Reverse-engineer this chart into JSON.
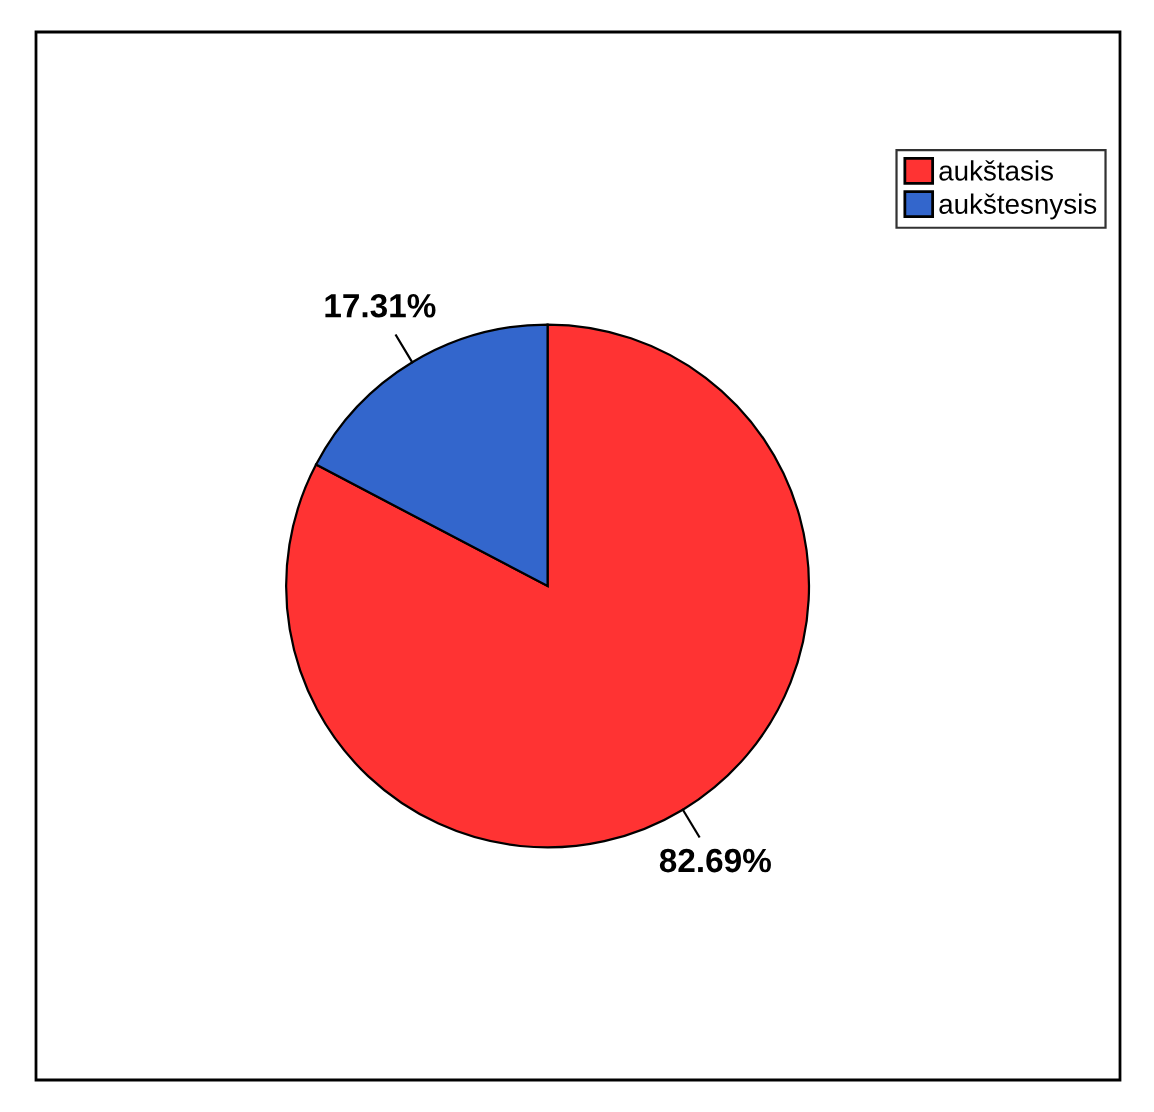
{
  "chart_data": {
    "type": "pie",
    "categories": [
      "aukštasis",
      "aukštesnysis"
    ],
    "values": [
      82.69,
      17.31
    ],
    "colors": [
      "#ff3333",
      "#3366cc"
    ],
    "value_labels": [
      "82.69%",
      "17.31%"
    ],
    "legend": "top right"
  }
}
